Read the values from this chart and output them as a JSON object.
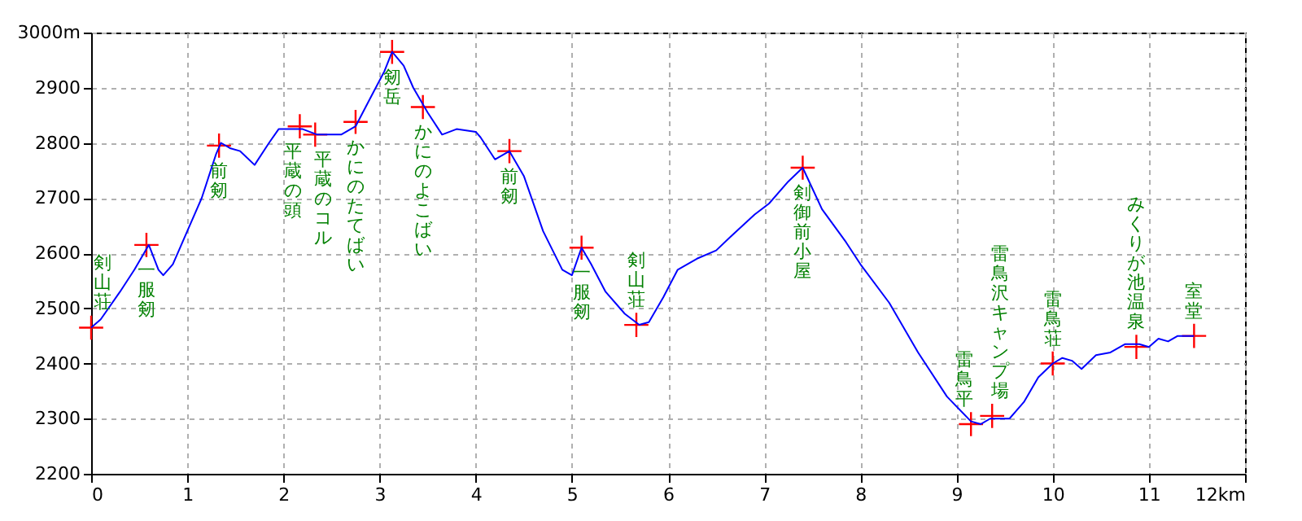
{
  "chart_data": {
    "type": "line",
    "x": [
      0,
      0.1,
      0.3,
      0.45,
      0.55,
      0.6,
      0.7,
      0.75,
      0.85,
      1.0,
      1.15,
      1.3,
      1.35,
      1.45,
      1.55,
      1.7,
      1.85,
      1.95,
      2.05,
      2.2,
      2.35,
      2.6,
      2.75,
      2.9,
      3.05,
      3.13,
      3.25,
      3.35,
      3.5,
      3.65,
      3.8,
      4.0,
      4.05,
      4.2,
      4.35,
      4.5,
      4.7,
      4.9,
      5.0,
      5.1,
      5.2,
      5.35,
      5.55,
      5.7,
      5.8,
      5.95,
      6.1,
      6.3,
      6.5,
      6.65,
      6.9,
      7.05,
      7.25,
      7.4,
      7.6,
      7.85,
      8.0,
      8.3,
      8.6,
      8.9,
      9.15,
      9.25,
      9.35,
      9.55,
      9.7,
      9.85,
      10.0,
      10.1,
      10.2,
      10.3,
      10.45,
      10.6,
      10.75,
      10.9,
      11.0,
      11.1,
      11.2,
      11.3,
      11.47
    ],
    "series": [
      {
        "color": "#0000ff",
        "marker": "none",
        "values": [
          2465,
          2480,
          2530,
          2570,
          2600,
          2615,
          2570,
          2560,
          2580,
          2640,
          2700,
          2780,
          2800,
          2790,
          2785,
          2760,
          2800,
          2825,
          2825,
          2825,
          2815,
          2815,
          2830,
          2880,
          2930,
          2965,
          2940,
          2900,
          2855,
          2815,
          2825,
          2820,
          2810,
          2770,
          2785,
          2740,
          2640,
          2570,
          2560,
          2610,
          2580,
          2530,
          2490,
          2470,
          2475,
          2520,
          2570,
          2590,
          2605,
          2630,
          2670,
          2690,
          2730,
          2755,
          2680,
          2620,
          2580,
          2510,
          2420,
          2340,
          2295,
          2290,
          2300,
          2300,
          2330,
          2375,
          2400,
          2410,
          2405,
          2390,
          2415,
          2420,
          2435,
          2435,
          2430,
          2445,
          2440,
          2450,
          2450
        ]
      },
      {
        "type": "scatter",
        "color": "#ff0000",
        "marker": "cross",
        "x": [
          0,
          0.575,
          1.33,
          2.17,
          2.33,
          2.75,
          3.13,
          3.45,
          4.35,
          5.1,
          5.67,
          7.4,
          9.15,
          9.37,
          10.0,
          10.87,
          11.47
        ],
        "values": [
          2465,
          2615,
          2795,
          2830,
          2815,
          2838,
          2965,
          2865,
          2785,
          2610,
          2470,
          2755,
          2290,
          2305,
          2400,
          2430,
          2450
        ]
      }
    ],
    "annotations": [
      {
        "text": "剣山荘",
        "x": 0,
        "y": 2465
      },
      {
        "text": "一服剱",
        "x": 0.575,
        "y": 2615
      },
      {
        "text": "前剱",
        "x": 1.33,
        "y": 2795
      },
      {
        "text": "平蔵の頭",
        "x": 2.17,
        "y": 2830
      },
      {
        "text": "平蔵のコル",
        "x": 2.33,
        "y": 2815
      },
      {
        "text": "かにのたてばい",
        "x": 2.75,
        "y": 2838
      },
      {
        "text": "剱岳",
        "x": 3.13,
        "y": 2965
      },
      {
        "text": "かにのよこばい",
        "x": 3.45,
        "y": 2865
      },
      {
        "text": "前剱",
        "x": 4.35,
        "y": 2785
      },
      {
        "text": "一服剱",
        "x": 5.1,
        "y": 2610
      },
      {
        "text": "剣山荘",
        "x": 5.67,
        "y": 2470
      },
      {
        "text": "剣御前小屋",
        "x": 7.4,
        "y": 2755
      },
      {
        "text": "雷鳥平",
        "x": 9.15,
        "y": 2290
      },
      {
        "text": "雷鳥沢キャンプ場",
        "x": 9.37,
        "y": 2305
      },
      {
        "text": "雷鳥荘",
        "x": 10.0,
        "y": 2400
      },
      {
        "text": "みくりが池温泉",
        "x": 10.87,
        "y": 2430
      },
      {
        "text": "室堂",
        "x": 11.47,
        "y": 2450
      }
    ],
    "xlim": [
      0,
      12
    ],
    "xticks": [
      0,
      1,
      2,
      3,
      4,
      5,
      6,
      7,
      8,
      9,
      10,
      11,
      {
        "value": 12,
        "label": "12km"
      }
    ],
    "ylim": [
      2200,
      3000
    ],
    "yticks": [
      2200,
      2300,
      2400,
      2500,
      2600,
      2700,
      2800,
      2900,
      {
        "value": 3000,
        "label": "3000m"
      }
    ],
    "grid": true,
    "line_style": "solid"
  }
}
